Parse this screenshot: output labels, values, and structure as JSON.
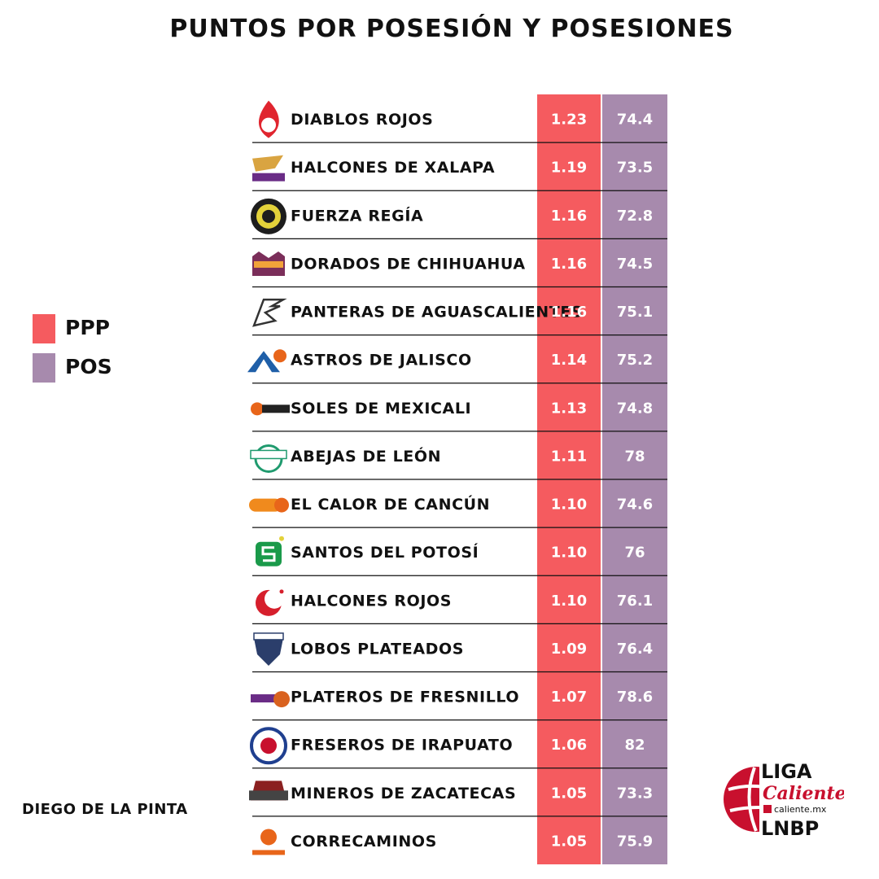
{
  "title": "PUNTOS POR POSESIÓN Y POSESIONES",
  "author": "DIEGO DE LA PINTA",
  "legend": [
    {
      "label": "PPP",
      "color": "#f55b5f"
    },
    {
      "label": "POS",
      "color": "#a78aad"
    }
  ],
  "brand": {
    "line1": "LIGA",
    "line2": "Caliente",
    "line3": "caliente.mx",
    "line4": "LNBP",
    "color": "#c8102e"
  },
  "chart_data": {
    "type": "table",
    "columns": [
      "PPP",
      "POS"
    ],
    "rows": [
      {
        "team": "DIABLOS ROJOS",
        "ppp": "1.23",
        "pos": "74.4",
        "logo": "flame-icon",
        "logo_color": "#e0252f"
      },
      {
        "team": "HALCONES DE XALAPA",
        "ppp": "1.19",
        "pos": "73.5",
        "logo": "falcon-icon",
        "logo_color": "#6a2c86"
      },
      {
        "team": "FUERZA REGÍA",
        "ppp": "1.16",
        "pos": "72.8",
        "logo": "gear-icon",
        "logo_color": "#1d1d1d"
      },
      {
        "team": "DORADOS DE CHIHUAHUA",
        "ppp": "1.16",
        "pos": "74.5",
        "logo": "castle-icon",
        "logo_color": "#7b2e5a"
      },
      {
        "team": "PANTERAS DE AGUASCALIENTES",
        "ppp": "1.16",
        "pos": "75.1",
        "logo": "panther-icon",
        "logo_color": "#333333"
      },
      {
        "team": "ASTROS DE JALISCO",
        "ppp": "1.14",
        "pos": "75.2",
        "logo": "rocket-icon",
        "logo_color": "#1f5fa8"
      },
      {
        "team": "SOLES DE MEXICALI",
        "ppp": "1.13",
        "pos": "74.8",
        "logo": "sun-icon",
        "logo_color": "#e8651a"
      },
      {
        "team": "ABEJAS DE LEÓN",
        "ppp": "1.11",
        "pos": "78",
        "logo": "bee-icon",
        "logo_color": "#1f9a6e"
      },
      {
        "team": "EL CALOR DE CANCÚN",
        "ppp": "1.10",
        "pos": "74.6",
        "logo": "heat-icon",
        "logo_color": "#f08a1d"
      },
      {
        "team": "SANTOS DEL POTOSÍ",
        "ppp": "1.10",
        "pos": "76",
        "logo": "star-s-icon",
        "logo_color": "#1a9a4a"
      },
      {
        "team": "HALCONES ROJOS",
        "ppp": "1.10",
        "pos": "76.1",
        "logo": "crescent-icon",
        "logo_color": "#d61f2c"
      },
      {
        "team": "LOBOS PLATEADOS",
        "ppp": "1.09",
        "pos": "76.4",
        "logo": "wolf-icon",
        "logo_color": "#2b3e6b"
      },
      {
        "team": "PLATEROS DE FRESNILLO",
        "ppp": "1.07",
        "pos": "78.6",
        "logo": "basketball-icon",
        "logo_color": "#d9621f"
      },
      {
        "team": "FRESEROS DE IRAPUATO",
        "ppp": "1.06",
        "pos": "82",
        "logo": "shield-icon",
        "logo_color": "#1f3f8f"
      },
      {
        "team": "MINEROS DE ZACATECAS",
        "ppp": "1.05",
        "pos": "73.3",
        "logo": "miner-icon",
        "logo_color": "#8b2020"
      },
      {
        "team": "CORRECAMINOS",
        "ppp": "1.05",
        "pos": "75.9",
        "logo": "roadrunner-icon",
        "logo_color": "#e8651a"
      }
    ]
  }
}
